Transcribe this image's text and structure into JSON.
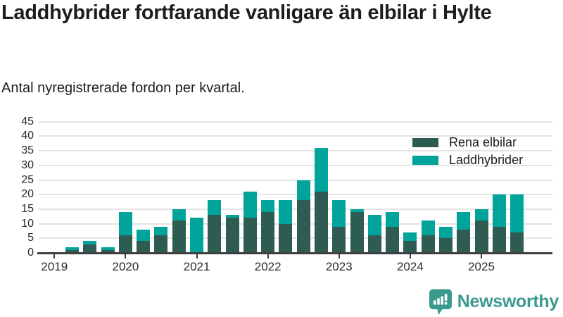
{
  "header": {
    "title": "Laddhybrider fortfarande vanligare än elbilar i Hylte",
    "subtitle": "Antal nyregistrerade fordon per kvartal."
  },
  "chart_data": {
    "type": "bar",
    "stacked": true,
    "title": "Laddhybrider fortfarande vanligare än elbilar i Hylte",
    "subtitle": "Antal nyregistrerade fordon per kvartal.",
    "categories": [
      "2019 Q1",
      "2019 Q2",
      "2019 Q3",
      "2019 Q4",
      "2020 Q1",
      "2020 Q2",
      "2020 Q3",
      "2020 Q4",
      "2021 Q1",
      "2021 Q2",
      "2021 Q3",
      "2021 Q4",
      "2022 Q1",
      "2022 Q2",
      "2022 Q3",
      "2022 Q4",
      "2023 Q1",
      "2023 Q2",
      "2023 Q3",
      "2023 Q4",
      "2024 Q1",
      "2024 Q2",
      "2024 Q3",
      "2024 Q4",
      "2025 Q1",
      "2025 Q2",
      "2025 Q3"
    ],
    "series": [
      {
        "name": "Rena elbilar",
        "color": "#2e5c53",
        "values": [
          0,
          1,
          3,
          1,
          6,
          4,
          6,
          11,
          0,
          13,
          12,
          12,
          14,
          10,
          18,
          21,
          9,
          14,
          6,
          9,
          4,
          6,
          5,
          8,
          11,
          9,
          7
        ]
      },
      {
        "name": "Laddhybrider",
        "color": "#00a49b",
        "values": [
          0,
          1,
          1,
          1,
          8,
          4,
          3,
          4,
          12,
          5,
          1,
          9,
          4,
          8,
          7,
          15,
          9,
          1,
          7,
          5,
          3,
          5,
          4,
          6,
          4,
          11,
          13
        ]
      }
    ],
    "totals": [
      0,
      2,
      4,
      2,
      14,
      8,
      9,
      15,
      12,
      18,
      13,
      21,
      18,
      18,
      25,
      36,
      18,
      15,
      13,
      14,
      7,
      11,
      9,
      14,
      15,
      20,
      20
    ],
    "x_year_labels": [
      "2019",
      "2020",
      "2021",
      "2022",
      "2023",
      "2024",
      "2025"
    ],
    "xlabel": "",
    "ylabel": "",
    "ylim": [
      0,
      45
    ],
    "ytick_step": 5,
    "yticks": [
      0,
      5,
      10,
      15,
      20,
      25,
      30,
      35,
      40,
      45
    ],
    "grid": true,
    "legend_position": "top-right"
  },
  "footer": {
    "brand": "Newsworthy",
    "brand_color": "#3a9a8d",
    "logo_icon": "bar-chart-speech-bubble-icon"
  },
  "colors": {
    "axis": "#3f3f3f",
    "gridline": "#e4e4e4",
    "text": "#1d1d1d",
    "tick_text": "#2b2b2b"
  }
}
